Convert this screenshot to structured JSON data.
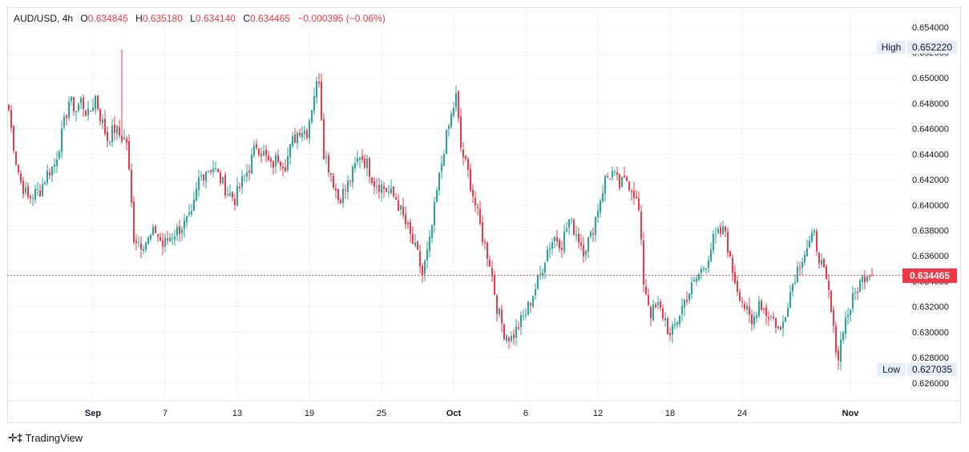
{
  "header": {
    "symbol": "AUD/USD",
    "interval": "4h",
    "open_key": "O",
    "open": "0.634845",
    "high_key": "H",
    "high": "0.635180",
    "low_key": "L",
    "low": "0.634140",
    "close_key": "C",
    "close": "0.634465",
    "change": "−0.000395 (−0.06%)"
  },
  "markers": {
    "high_label": "High",
    "high_value": "0.652220",
    "low_label": "Low",
    "low_value": "0.627035",
    "last_value": "0.634465"
  },
  "brand": {
    "icon": "tradingview-logo-icon",
    "name": "TradingView"
  },
  "colors": {
    "up": "#26a69a",
    "down": "#f23645",
    "grid": "#f0f3fa",
    "last_line": "#f23645"
  },
  "chart_data": {
    "type": "candlestick",
    "symbol": "AUD/USD",
    "interval": "4h",
    "ylim": [
      0.6246,
      0.6555
    ],
    "y_ticks": [
      "0.654000",
      "0.652000",
      "0.650000",
      "0.648000",
      "0.646000",
      "0.644000",
      "0.642000",
      "0.640000",
      "0.638000",
      "0.636000",
      "0.634000",
      "0.632000",
      "0.630000",
      "0.628000",
      "0.626000"
    ],
    "x_ticks": [
      {
        "label": "Sep",
        "bar": 35
      },
      {
        "label": "7",
        "bar": 65
      },
      {
        "label": "13",
        "bar": 95
      },
      {
        "label": "19",
        "bar": 125
      },
      {
        "label": "25",
        "bar": 155
      },
      {
        "label": "Oct",
        "bar": 185
      },
      {
        "label": "6",
        "bar": 215
      },
      {
        "label": "12",
        "bar": 245
      },
      {
        "label": "18",
        "bar": 275
      },
      {
        "label": "24",
        "bar": 305
      },
      {
        "label": "Nov",
        "bar": 350
      }
    ],
    "bar_count": 360,
    "last_price": 0.634465,
    "high": 0.65222,
    "low": 0.627035,
    "anchors": [
      [
        0,
        0.6475
      ],
      [
        1,
        0.646
      ],
      [
        3,
        0.6435
      ],
      [
        5,
        0.6418
      ],
      [
        8,
        0.6405
      ],
      [
        10,
        0.6408
      ],
      [
        13,
        0.6412
      ],
      [
        16,
        0.6425
      ],
      [
        19,
        0.6432
      ],
      [
        22,
        0.6455
      ],
      [
        25,
        0.6482
      ],
      [
        28,
        0.6475
      ],
      [
        30,
        0.6482
      ],
      [
        33,
        0.647
      ],
      [
        36,
        0.6485
      ],
      [
        38,
        0.647
      ],
      [
        41,
        0.6452
      ],
      [
        44,
        0.646
      ],
      [
        46,
        0.6455
      ],
      [
        49,
        0.645
      ],
      [
        52,
        0.6375
      ],
      [
        55,
        0.637
      ],
      [
        58,
        0.6372
      ],
      [
        61,
        0.638
      ],
      [
        64,
        0.6368
      ],
      [
        67,
        0.6375
      ],
      [
        70,
        0.638
      ],
      [
        73,
        0.6385
      ],
      [
        76,
        0.639
      ],
      [
        79,
        0.642
      ],
      [
        82,
        0.6428
      ],
      [
        85,
        0.643
      ],
      [
        88,
        0.642
      ],
      [
        91,
        0.641
      ],
      [
        94,
        0.6405
      ],
      [
        97,
        0.6418
      ],
      [
        100,
        0.643
      ],
      [
        103,
        0.6448
      ],
      [
        106,
        0.644
      ],
      [
        109,
        0.643
      ],
      [
        112,
        0.6438
      ],
      [
        115,
        0.6432
      ],
      [
        118,
        0.645
      ],
      [
        121,
        0.646
      ],
      [
        124,
        0.6458
      ],
      [
        127,
        0.6488
      ],
      [
        129,
        0.65
      ],
      [
        131,
        0.6442
      ],
      [
        134,
        0.6425
      ],
      [
        137,
        0.6405
      ],
      [
        140,
        0.6412
      ],
      [
        143,
        0.6425
      ],
      [
        146,
        0.644
      ],
      [
        149,
        0.6432
      ],
      [
        152,
        0.6418
      ],
      [
        155,
        0.6415
      ],
      [
        158,
        0.641
      ],
      [
        161,
        0.6405
      ],
      [
        164,
        0.639
      ],
      [
        167,
        0.6375
      ],
      [
        170,
        0.636
      ],
      [
        172,
        0.6345
      ],
      [
        175,
        0.637
      ],
      [
        178,
        0.641
      ],
      [
        181,
        0.6445
      ],
      [
        184,
        0.647
      ],
      [
        186,
        0.6485
      ],
      [
        188,
        0.6445
      ],
      [
        191,
        0.6425
      ],
      [
        194,
        0.64
      ],
      [
        197,
        0.6375
      ],
      [
        200,
        0.6355
      ],
      [
        203,
        0.632
      ],
      [
        206,
        0.63
      ],
      [
        209,
        0.6295
      ],
      [
        212,
        0.6305
      ],
      [
        215,
        0.6315
      ],
      [
        218,
        0.633
      ],
      [
        221,
        0.6345
      ],
      [
        224,
        0.6365
      ],
      [
        227,
        0.6375
      ],
      [
        230,
        0.637
      ],
      [
        233,
        0.6388
      ],
      [
        236,
        0.6378
      ],
      [
        239,
        0.6365
      ],
      [
        242,
        0.6375
      ],
      [
        245,
        0.6398
      ],
      [
        248,
        0.642
      ],
      [
        251,
        0.6425
      ],
      [
        254,
        0.6415
      ],
      [
        257,
        0.642
      ],
      [
        260,
        0.641
      ],
      [
        262,
        0.6395
      ],
      [
        264,
        0.634
      ],
      [
        267,
        0.6315
      ],
      [
        270,
        0.632
      ],
      [
        273,
        0.631
      ],
      [
        275,
        0.6295
      ],
      [
        278,
        0.631
      ],
      [
        281,
        0.6325
      ],
      [
        284,
        0.6335
      ],
      [
        287,
        0.6345
      ],
      [
        290,
        0.6355
      ],
      [
        293,
        0.6372
      ],
      [
        296,
        0.6378
      ],
      [
        298,
        0.638
      ],
      [
        300,
        0.6355
      ],
      [
        303,
        0.6335
      ],
      [
        306,
        0.632
      ],
      [
        309,
        0.6305
      ],
      [
        312,
        0.6325
      ],
      [
        315,
        0.6315
      ],
      [
        318,
        0.631
      ],
      [
        321,
        0.63
      ],
      [
        324,
        0.6325
      ],
      [
        327,
        0.6345
      ],
      [
        330,
        0.636
      ],
      [
        333,
        0.637
      ],
      [
        335,
        0.6375
      ],
      [
        337,
        0.636
      ],
      [
        339,
        0.6345
      ],
      [
        341,
        0.633
      ],
      [
        343,
        0.63
      ],
      [
        345,
        0.628
      ],
      [
        347,
        0.6305
      ],
      [
        350,
        0.632
      ],
      [
        353,
        0.6335
      ],
      [
        356,
        0.6345
      ],
      [
        359,
        0.635
      ]
    ]
  }
}
